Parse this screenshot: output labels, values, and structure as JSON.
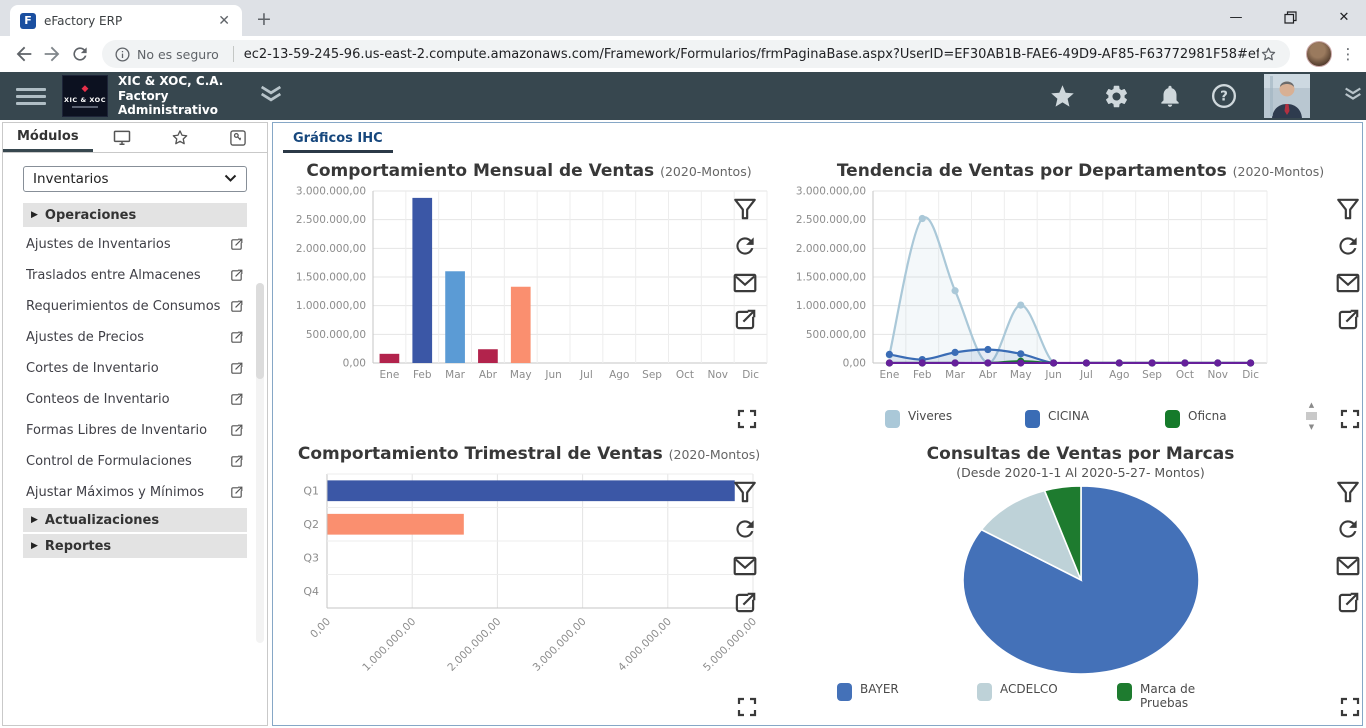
{
  "browser": {
    "tab_title": "eFactory ERP",
    "favicon_letter": "F",
    "security_label": "No es seguro",
    "url": "ec2-13-59-245-96.us-east-2.compute.amazonaws.com/Framework/Formularios/frmPaginaBase.aspx?UserID=EF30AB1B-FAE6-49D9-AF85-F63772981F58#efactory"
  },
  "appbar": {
    "logo_text": "XIC & XOC",
    "company_name": "XIC & XOC, C.A.",
    "company_line2": "Factory",
    "company_line3": "Administrativo",
    "right_icons": [
      "favorites-star-icon",
      "settings-gear-icon",
      "notifications-bell-icon",
      "help-icon",
      "user-avatar",
      "collapse-chevrons-icon"
    ],
    "bar_color": "#37474f"
  },
  "sidebar": {
    "modules_tab_label": "Módulos",
    "icon_tabs": [
      "monitor-icon",
      "star-icon",
      "key-icon"
    ],
    "module_selector_value": "Inventarios",
    "sections": [
      {
        "label": "Operaciones",
        "items": [
          "Ajustes de Inventarios",
          "Traslados entre Almacenes",
          "Requerimientos de Consumos",
          "Ajustes de Precios",
          "Cortes de Inventario",
          "Conteos de Inventario",
          "Formas Libres de Inventario",
          "Control de Formulaciones",
          "Ajustar Máximos y Mínimos"
        ]
      },
      {
        "label": "Actualizaciones",
        "items": []
      },
      {
        "label": "Reportes",
        "items": []
      }
    ]
  },
  "main": {
    "tab_label": "Gráficos IHC",
    "chart_tool_icons": [
      "filter-icon",
      "refresh-icon",
      "mail-icon",
      "export-icon"
    ],
    "fullscreen_icon": "fullscreen-icon"
  },
  "chart_data": [
    {
      "type": "bar",
      "title": "Comportamiento Mensual de Ventas",
      "subtitle": "(2020-Montos)",
      "categories": [
        "Ene",
        "Feb",
        "Mar",
        "Abr",
        "May",
        "Jun",
        "Jul",
        "Ago",
        "Sep",
        "Oct",
        "Nov",
        "Dic"
      ],
      "values": [
        160000,
        2880000,
        1600000,
        240000,
        1330000,
        0,
        0,
        0,
        0,
        0,
        0,
        0
      ],
      "bar_colors": [
        "#b2234c",
        "#3b57a6",
        "#5b9bd5",
        "#b2234c",
        "#fa8f6f",
        "#cccccc",
        "#cccccc",
        "#cccccc",
        "#cccccc",
        "#cccccc",
        "#cccccc",
        "#cccccc"
      ],
      "ylim": [
        0,
        3000000
      ],
      "ytick_labels": [
        "0,00",
        "500.000,00",
        "1.000.000,00",
        "1.500.000,00",
        "2.000.000,00",
        "2.500.000,00",
        "3.000.000,00"
      ],
      "grid": true,
      "legend_position": "none"
    },
    {
      "type": "line",
      "title": "Tendencia de Ventas por Departamentos",
      "subtitle": "(2020-Montos)",
      "categories": [
        "Ene",
        "Feb",
        "Mar",
        "Abr",
        "May",
        "Jun",
        "Jul",
        "Ago",
        "Sep",
        "Oct",
        "Nov",
        "Dic"
      ],
      "series": [
        {
          "name": "Viveres",
          "color": "#aac8d8",
          "area_fill": true,
          "values": [
            140000,
            2520000,
            1260000,
            0,
            1010000,
            0,
            0,
            0,
            0,
            0,
            0,
            0
          ]
        },
        {
          "name": "CICINA",
          "color": "#3a6cb5",
          "area_fill": true,
          "values": [
            150000,
            60000,
            185000,
            235000,
            160000,
            0,
            0,
            0,
            0,
            0,
            0,
            0
          ]
        },
        {
          "name": "Oficna",
          "color": "#157a2a",
          "area_fill": false,
          "values": [
            0,
            0,
            0,
            0,
            30000,
            0,
            0,
            0,
            0,
            0,
            0,
            0
          ]
        },
        {
          "name": "",
          "color": "#66209b",
          "area_fill": false,
          "values": [
            0,
            0,
            0,
            0,
            0,
            0,
            0,
            0,
            0,
            0,
            0,
            0
          ]
        }
      ],
      "ylim": [
        0,
        3000000
      ],
      "ytick_labels": [
        "0,00",
        "500.000,00",
        "1.000.000,00",
        "1.500.000,00",
        "2.000.000,00",
        "2.500.000,00",
        "3.000.000,00"
      ],
      "grid": true,
      "legend_position": "bottom"
    },
    {
      "type": "hbar",
      "title": "Comportamiento Trimestral de Ventas",
      "subtitle": "(2020-Montos)",
      "categories": [
        "Q1",
        "Q2",
        "Q3",
        "Q4"
      ],
      "values": [
        4780000,
        1600000,
        0,
        0
      ],
      "bar_colors": [
        "#3b57a6",
        "#fa8f6f",
        "#cccccc",
        "#cccccc"
      ],
      "xlim": [
        0,
        5000000
      ],
      "xtick_labels": [
        "0,00",
        "1.000.000,00",
        "2.000.000,00",
        "3.000.000,00",
        "4.000.000,00",
        "5.000.000,00"
      ],
      "grid": true,
      "legend_position": "none"
    },
    {
      "type": "pie",
      "title": "Consultas de Ventas por Marcas",
      "subtitle": "(Desde 2020-1-1 Al 2020-5-27- Montos)",
      "labels": [
        "BAYER",
        "ACDELCO",
        "Marca de Pruebas"
      ],
      "values_percent": [
        84,
        11,
        5
      ],
      "colors": [
        "#4471b8",
        "#bed2d8",
        "#1e7b2f"
      ],
      "legend_position": "bottom"
    }
  ]
}
